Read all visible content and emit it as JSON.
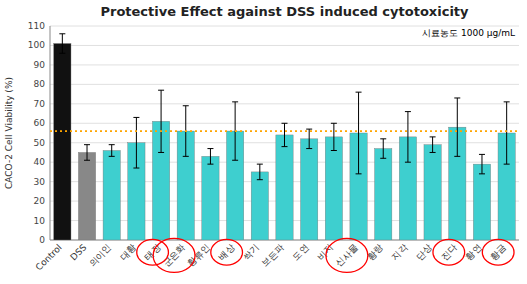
{
  "chart_data": {
    "type": "bar",
    "title": "Protective Effect against DSS induced cytotoxicity",
    "y_label": "CACO-2 Cell Viability (%)",
    "annotation": "시료농도 1000 μg/mL",
    "categories": [
      "Control",
      "DSS",
      "의이인",
      "대황",
      "태장",
      "군은화",
      "황류인",
      "배상",
      "싹기",
      "보든파",
      "도연",
      "비지",
      "신사물",
      "황랑",
      "지각",
      "단상",
      "진다",
      "황연",
      "황금"
    ],
    "values": [
      101,
      45,
      46,
      50,
      61,
      56,
      43,
      56,
      35,
      54,
      52,
      53,
      55,
      47,
      53,
      49,
      58,
      39,
      55
    ],
    "errors": [
      5,
      4,
      3,
      13,
      16,
      13,
      4,
      15,
      4,
      6,
      5,
      7,
      21,
      5,
      13,
      4,
      15,
      5,
      16
    ],
    "colors": [
      "#111111",
      "#888888",
      "#3ecfcf",
      "#3ecfcf",
      "#3ecfcf",
      "#3ecfcf",
      "#3ecfcf",
      "#3ecfcf",
      "#3ecfcf",
      "#3ecfcf",
      "#3ecfcf",
      "#3ecfcf",
      "#3ecfcf",
      "#3ecfcf",
      "#3ecfcf",
      "#3ecfcf",
      "#3ecfcf",
      "#3ecfcf",
      "#3ecfcf"
    ],
    "circled": [
      false,
      false,
      false,
      false,
      true,
      true,
      false,
      true,
      false,
      false,
      false,
      false,
      true,
      false,
      false,
      false,
      true,
      false,
      true
    ],
    "reference_line": 56,
    "reference_line_color": "#FFA500",
    "ylim": [
      0,
      110
    ],
    "yticks": [
      0,
      10,
      20,
      30,
      40,
      50,
      60,
      70,
      80,
      90,
      100,
      110
    ],
    "grid": true
  }
}
